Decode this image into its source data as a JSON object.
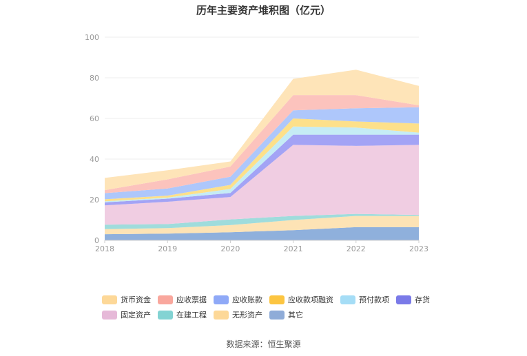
{
  "chart_data": {
    "type": "area",
    "stacked": true,
    "title": "历年主要资产堆积图（亿元）",
    "categories": [
      "2018",
      "2019",
      "2020",
      "2021",
      "2022",
      "2023"
    ],
    "ylim": [
      0,
      100
    ],
    "yticks": [
      0,
      20,
      40,
      60,
      80,
      100
    ],
    "grid": true,
    "legend_position": "bottom",
    "series": [
      {
        "name": "其它",
        "color": "#8fb0dc",
        "values": [
          3.0,
          3.3,
          4.0,
          5.0,
          6.5,
          6.5
        ]
      },
      {
        "name": "无形资产",
        "color": "#fde3b5",
        "values": [
          2.5,
          2.7,
          3.5,
          5.0,
          5.5,
          5.5
        ]
      },
      {
        "name": "在建工程",
        "color": "#9fdcdc",
        "values": [
          2.2,
          2.0,
          2.8,
          2.0,
          1.0,
          0.5
        ]
      },
      {
        "name": "固定资产",
        "color": "#f0cde2",
        "values": [
          9.5,
          11.0,
          11.0,
          35.0,
          33.5,
          34.5
        ]
      },
      {
        "name": "存货",
        "color": "#a3a3f5",
        "values": [
          1.5,
          1.5,
          2.0,
          5.0,
          5.5,
          5.0
        ]
      },
      {
        "name": "预付款项",
        "color": "#c5ecf5",
        "values": [
          0.5,
          0.5,
          2.0,
          4.0,
          3.5,
          1.0
        ]
      },
      {
        "name": "应收款项融资",
        "color": "#fde08a",
        "values": [
          1.0,
          1.0,
          2.0,
          4.0,
          3.0,
          4.5
        ]
      },
      {
        "name": "应收账款",
        "color": "#aec7fb",
        "values": [
          3.0,
          3.5,
          4.0,
          4.0,
          6.5,
          8.0
        ]
      },
      {
        "name": "应收票据",
        "color": "#fcc3bd",
        "values": [
          1.5,
          4.5,
          5.0,
          7.5,
          6.5,
          1.0
        ]
      },
      {
        "name": "货币资金",
        "color": "#fee4b8",
        "values": [
          6.0,
          4.5,
          2.5,
          8.0,
          12.5,
          9.5
        ]
      }
    ],
    "legend_order": [
      "货币资金",
      "应收票据",
      "应收账款",
      "应收款项融资",
      "预付款项",
      "存货",
      "固定资产",
      "在建工程",
      "无形资产",
      "其它"
    ],
    "legend_colors": [
      "#fdd898",
      "#f9a79d",
      "#8fa9f7",
      "#fcc541",
      "#a5ddf6",
      "#7a7ae8",
      "#e6b9d8",
      "#83d3d3",
      "#fdd898",
      "#8facd8"
    ],
    "source": "数据来源：恒生聚源"
  }
}
